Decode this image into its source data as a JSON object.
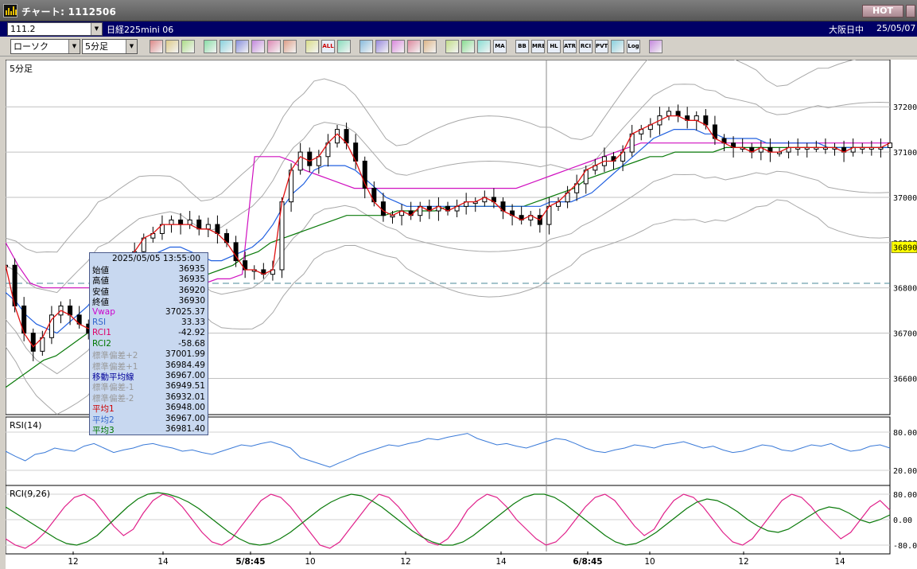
{
  "window": {
    "title": "チャート: 1112506",
    "hot_label": "HOT"
  },
  "infobar": {
    "symbol_code": "111.2",
    "symbol_name": "日経225mini 06",
    "session": "大阪日中",
    "date": "25/05/07"
  },
  "toolbar": {
    "chart_type": "ローソク",
    "timeframe": "5分足",
    "icons": [
      {
        "name": "search-icon",
        "label": ""
      },
      {
        "name": "window-icon",
        "label": ""
      },
      {
        "name": "pencil-icon",
        "label": ""
      },
      {
        "name": "pen-icon",
        "label": ""
      },
      {
        "name": "cursor-icon",
        "label": ""
      },
      {
        "name": "undo-icon",
        "label": ""
      },
      {
        "name": "document-icon",
        "label": ""
      },
      {
        "name": "trash-icon",
        "label": ""
      },
      {
        "name": "candle-icon-1",
        "label": ""
      },
      {
        "name": "candle-icon-2",
        "label": ""
      },
      {
        "name": "all-icon",
        "label": "ALL"
      },
      {
        "name": "download-icon",
        "label": ""
      },
      {
        "name": "zoom-icon",
        "label": ""
      },
      {
        "name": "bar-chart-icon",
        "label": ""
      },
      {
        "name": "arrows-icon",
        "label": ""
      },
      {
        "name": "warning-icon",
        "label": ""
      },
      {
        "name": "settings-icon",
        "label": ""
      },
      {
        "name": "wrench-icon",
        "label": ""
      },
      {
        "name": "palette-icon",
        "label": ""
      },
      {
        "name": "volume-icon",
        "label": ""
      },
      {
        "name": "ma-icon",
        "label": "MA"
      },
      {
        "name": "bb-icon",
        "label": "BB"
      },
      {
        "name": "mre-icon",
        "label": "MRE"
      },
      {
        "name": "hl-icon",
        "label": "HL"
      },
      {
        "name": "atr-icon",
        "label": "ATR"
      },
      {
        "name": "rci-icon",
        "label": "RCI"
      },
      {
        "name": "pvt-icon",
        "label": "PVT"
      },
      {
        "name": "box-icon",
        "label": ""
      },
      {
        "name": "log-icon",
        "label": "Log"
      },
      {
        "name": "exit-icon",
        "label": ""
      }
    ]
  },
  "main_panel": {
    "label": "5分足",
    "y_ticks": [
      "37200",
      "37100",
      "37000",
      "36900",
      "36800",
      "36700",
      "36600"
    ],
    "current_price": "36890"
  },
  "rsi_panel": {
    "label": "RSI(14)",
    "y_ticks": [
      "80.00",
      "20.00"
    ]
  },
  "rci_panel": {
    "label": "RCI(9,26)",
    "y_ticks": [
      "80.00",
      "0.00",
      "-80.00"
    ]
  },
  "x_labels": [
    "12",
    "14",
    "5/8:45",
    "10",
    "12",
    "14",
    "6/8:45",
    "10",
    "12",
    "14"
  ],
  "ohlc": {
    "datetime": "2025/05/05  13:55:00",
    "rows": [
      {
        "label": "始値",
        "value": "36935",
        "color": "#000000"
      },
      {
        "label": "高値",
        "value": "36935",
        "color": "#000000"
      },
      {
        "label": "安値",
        "value": "36920",
        "color": "#000000"
      },
      {
        "label": "終値",
        "value": "36930",
        "color": "#000000"
      },
      {
        "label": "Vwap",
        "value": "37025.37",
        "color": "#cc00cc"
      },
      {
        "label": "RSI",
        "value": "33.33",
        "color": "#3366cc"
      },
      {
        "label": "RCI1",
        "value": "-42.92",
        "color": "#dd0066"
      },
      {
        "label": "RCI2",
        "value": "-58.68",
        "color": "#007700"
      },
      {
        "label": "標準偏差+2",
        "value": "37001.99",
        "color": "#999999"
      },
      {
        "label": "標準偏差+1",
        "value": "36984.49",
        "color": "#999999"
      },
      {
        "label": "移動平均線",
        "value": "36967.00",
        "color": "#000099"
      },
      {
        "label": "標準偏差-1",
        "value": "36949.51",
        "color": "#999999"
      },
      {
        "label": "標準偏差-2",
        "value": "36932.01",
        "color": "#999999"
      },
      {
        "label": "平均1",
        "value": "36948.00",
        "color": "#cc0000"
      },
      {
        "label": "平均2",
        "value": "36967.00",
        "color": "#3366cc"
      },
      {
        "label": "平均3",
        "value": "36981.40",
        "color": "#007700"
      }
    ]
  },
  "chart_data": {
    "type": "line",
    "reference_line": 36810,
    "ylim": [
      36520,
      37290
    ],
    "close": [
      36850,
      36760,
      36700,
      36660,
      36690,
      36740,
      36760,
      36740,
      36720,
      36700,
      36720,
      36760,
      36800,
      36860,
      36880,
      36910,
      36920,
      36940,
      36950,
      36940,
      36950,
      36930,
      36940,
      36920,
      36900,
      36860,
      36840,
      36840,
      36830,
      36840,
      36990,
      37060,
      37100,
      37070,
      37090,
      37120,
      37150,
      37120,
      37080,
      37020,
      36990,
      36960,
      36960,
      36970,
      36960,
      36980,
      36970,
      36980,
      36970,
      36980,
      36990,
      36990,
      37000,
      36990,
      36970,
      36960,
      36950,
      36960,
      36940,
      36980,
      36990,
      37010,
      37030,
      37060,
      37070,
      37090,
      37080,
      37100,
      37140,
      37150,
      37160,
      37180,
      37190,
      37180,
      37170,
      37180,
      37160,
      37130,
      37120,
      37110,
      37110,
      37100,
      37110,
      37100,
      37100,
      37110,
      37110,
      37110,
      37110,
      37110,
      37110,
      37100,
      37110,
      37110,
      37110,
      37110,
      37120
    ],
    "ma1": [
      36850,
      36760,
      36700,
      36670,
      36690,
      36730,
      36750,
      36740,
      36720,
      36710,
      36720,
      36750,
      36800,
      36860,
      36880,
      36910,
      36920,
      36940,
      36940,
      36940,
      36940,
      36930,
      36930,
      36920,
      36900,
      36870,
      36840,
      36840,
      36830,
      36840,
      36990,
      37060,
      37090,
      37080,
      37090,
      37120,
      37140,
      37120,
      37080,
      37030,
      36990,
      36970,
      36960,
      36970,
      36960,
      36980,
      36970,
      36980,
      36970,
      36980,
      36990,
      36990,
      37000,
      36990,
      36970,
      36960,
      36950,
      36960,
      36950,
      36980,
      36990,
      37010,
      37030,
      37060,
      37070,
      37080,
      37080,
      37100,
      37140,
      37150,
      37160,
      37170,
      37180,
      37180,
      37170,
      37170,
      37160,
      37130,
      37120,
      37110,
      37110,
      37100,
      37110,
      37100,
      37100,
      37110,
      37110,
      37110,
      37110,
      37110,
      37110,
      37100,
      37110,
      37110,
      37110,
      37110,
      37120
    ],
    "ma2": [
      36790,
      36770,
      36740,
      36720,
      36710,
      36700,
      36720,
      36740,
      36760,
      36790,
      36800,
      36820,
      36840,
      36860,
      36870,
      36880,
      36890,
      36890,
      36880,
      36870,
      36860,
      36860,
      36870,
      36880,
      36890,
      36910,
      36940,
      36980,
      37010,
      37030,
      37060,
      37070,
      37070,
      37070,
      37060,
      37040,
      37020,
      37000,
      36990,
      36980,
      36980,
      36980,
      36980,
      36980,
      36980,
      36980,
      36980,
      36980,
      36980,
      36980,
      36980,
      36980,
      36980,
      36990,
      36990,
      36990,
      37000,
      37010,
      37030,
      37050,
      37070,
      37090,
      37110,
      37130,
      37140,
      37150,
      37150,
      37150,
      37140,
      37140,
      37130,
      37130,
      37130,
      37130,
      37120,
      37120,
      37120,
      37120,
      37120,
      37120,
      37110,
      37110,
      37110,
      37110,
      37110,
      37110,
      37110
    ],
    "ma3": [
      36580,
      36600,
      36620,
      36640,
      36650,
      36670,
      36690,
      36710,
      36730,
      36750,
      36770,
      36790,
      36800,
      36810,
      36820,
      36820,
      36830,
      36840,
      36850,
      36870,
      36880,
      36900,
      36910,
      36920,
      36930,
      36940,
      36950,
      36960,
      36960,
      36960,
      36960,
      36970,
      36970,
      36970,
      36970,
      36980,
      36980,
      36980,
      36980,
      36980,
      36980,
      36980,
      36990,
      37000,
      37010,
      37020,
      37040,
      37050,
      37060,
      37070,
      37080,
      37090,
      37090,
      37100,
      37100,
      37100,
      37100,
      37110,
      37110,
      37110,
      37110,
      37110,
      37110,
      37110,
      37110,
      37110,
      37110,
      37110,
      37110,
      37110,
      37110
    ],
    "vwap": [
      36900,
      36850,
      36810,
      36800,
      36800,
      36800,
      36800,
      36800,
      36800,
      36800,
      36800,
      36800,
      36800,
      36800,
      36810,
      36810,
      36810,
      36820,
      36820,
      36830,
      37090,
      37090,
      37090,
      37080,
      37060,
      37050,
      37040,
      37030,
      37020,
      37020,
      37020,
      37020,
      37020,
      37020,
      37020,
      37020,
      37020,
      37020,
      37020,
      37020,
      37020,
      37020,
      37030,
      37040,
      37050,
      37060,
      37070,
      37080,
      37090,
      37100,
      37110,
      37120,
      37120,
      37120,
      37120,
      37120,
      37120,
      37120,
      37120,
      37120,
      37120,
      37120,
      37120,
      37120,
      37120,
      37120,
      37120,
      37120,
      37120,
      37120,
      37120,
      37120
    ],
    "rsi": [
      50,
      42,
      35,
      45,
      48,
      55,
      52,
      50,
      58,
      62,
      55,
      48,
      52,
      55,
      60,
      62,
      58,
      55,
      50,
      52,
      48,
      45,
      50,
      55,
      60,
      58,
      62,
      65,
      60,
      55,
      40,
      35,
      30,
      25,
      32,
      38,
      45,
      50,
      55,
      60,
      58,
      62,
      65,
      70,
      68,
      72,
      75,
      78,
      70,
      65,
      60,
      62,
      58,
      55,
      60,
      65,
      70,
      68,
      62,
      55,
      50,
      48,
      52,
      55,
      60,
      58,
      55,
      60,
      62,
      65,
      60,
      55,
      58,
      52,
      48,
      50,
      55,
      60,
      58,
      52,
      50,
      55,
      60,
      58,
      62,
      55,
      50,
      52,
      58,
      60,
      55
    ],
    "rci1": [
      -60,
      -80,
      -90,
      -70,
      -40,
      0,
      40,
      70,
      80,
      60,
      20,
      -20,
      -50,
      -30,
      20,
      60,
      80,
      70,
      40,
      0,
      -40,
      -70,
      -80,
      -60,
      -20,
      20,
      60,
      80,
      70,
      40,
      0,
      -40,
      -80,
      -90,
      -70,
      -30,
      10,
      50,
      80,
      70,
      40,
      0,
      -40,
      -70,
      -80,
      -60,
      -20,
      30,
      60,
      80,
      70,
      40,
      0,
      -30,
      -60,
      -80,
      -70,
      -40,
      0,
      40,
      70,
      80,
      60,
      20,
      -20,
      -50,
      -30,
      20,
      60,
      80,
      70,
      40,
      0,
      -40,
      -70,
      -80,
      -60,
      -20,
      20,
      60,
      80,
      70,
      40,
      0,
      -30,
      -60,
      -40,
      0,
      40,
      60,
      30
    ],
    "rci2": [
      40,
      20,
      0,
      -20,
      -40,
      -60,
      -75,
      -80,
      -70,
      -50,
      -20,
      10,
      40,
      65,
      80,
      85,
      80,
      70,
      55,
      35,
      10,
      -15,
      -40,
      -60,
      -75,
      -80,
      -75,
      -60,
      -40,
      -15,
      10,
      35,
      55,
      70,
      80,
      75,
      60,
      40,
      15,
      -10,
      -35,
      -55,
      -70,
      -80,
      -80,
      -70,
      -50,
      -25,
      0,
      25,
      50,
      70,
      80,
      80,
      70,
      50,
      25,
      0,
      -25,
      -50,
      -70,
      -80,
      -75,
      -60,
      -40,
      -15,
      10,
      35,
      55,
      65,
      60,
      45,
      25,
      0,
      -20,
      -35,
      -40,
      -30,
      -10,
      10,
      30,
      40,
      35,
      20,
      0,
      -10,
      0,
      15
    ]
  }
}
